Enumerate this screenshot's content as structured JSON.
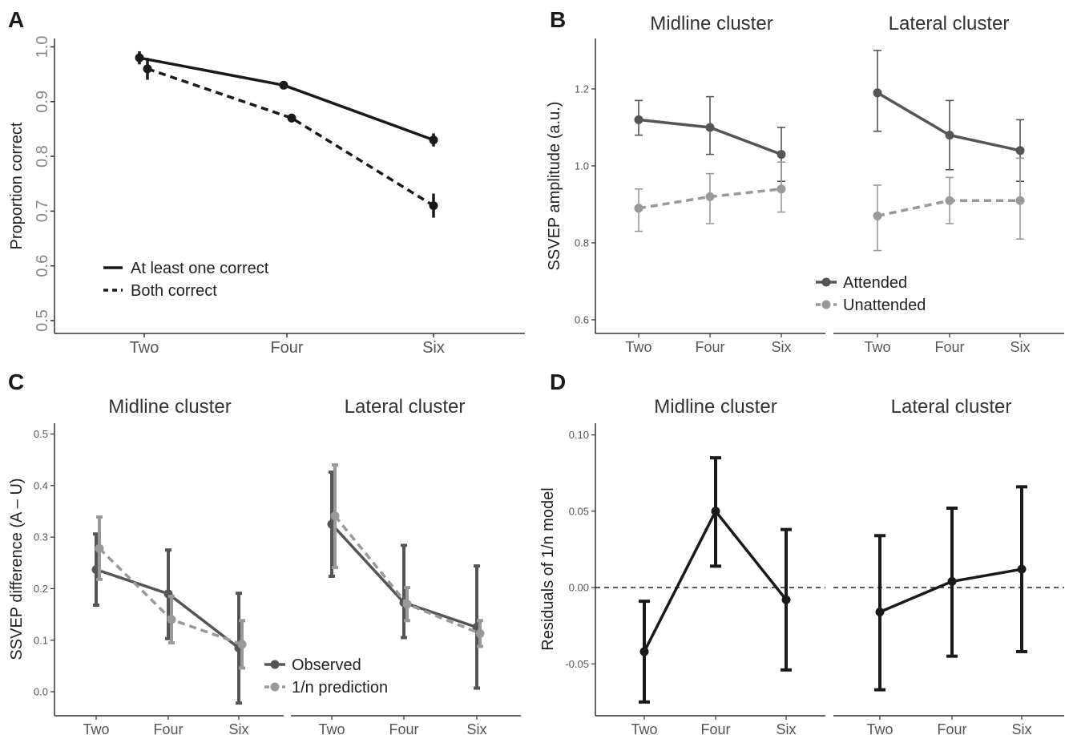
{
  "chart_data": [
    {
      "panel": "A",
      "type": "line",
      "title": "",
      "xlabel": "",
      "ylabel": "Proportion correct",
      "categories": [
        "Two",
        "Four",
        "Six"
      ],
      "ylim": [
        0.5,
        1.0
      ],
      "yticks": [
        "0.5",
        "0.6",
        "0.7",
        "0.8",
        "0.9",
        "1.0"
      ],
      "series": [
        {
          "name": "At least one correct",
          "style": "solid",
          "color": "#1a1a1a",
          "values": [
            0.98,
            0.93,
            0.83
          ],
          "err": [
            0.012,
            0.004,
            0.012
          ]
        },
        {
          "name": "Both correct",
          "style": "dashed",
          "color": "#1a1a1a",
          "values": [
            0.96,
            0.87,
            0.71
          ],
          "err": [
            0.02,
            0.008,
            0.022
          ]
        }
      ]
    },
    {
      "panel": "B",
      "type": "line",
      "ylabel": "SSVEP amplitude (a.u.)",
      "categories": [
        "Two",
        "Four",
        "Six"
      ],
      "ylim": [
        0.6,
        1.3
      ],
      "yticks": [
        "0.6",
        "0.8",
        "1.0",
        "1.2"
      ],
      "facets": [
        {
          "title": "Midline cluster",
          "series": [
            {
              "name": "Attended",
              "values": [
                1.12,
                1.1,
                1.03
              ],
              "lo": [
                1.08,
                1.03,
                0.96
              ],
              "hi": [
                1.17,
                1.18,
                1.1
              ]
            },
            {
              "name": "Unattended",
              "values": [
                0.89,
                0.92,
                0.94
              ],
              "lo": [
                0.83,
                0.85,
                0.88
              ],
              "hi": [
                0.94,
                0.98,
                1.01
              ]
            }
          ]
        },
        {
          "title": "Lateral cluster",
          "series": [
            {
              "name": "Attended",
              "values": [
                1.19,
                1.08,
                1.04
              ],
              "lo": [
                1.09,
                0.99,
                0.96
              ],
              "hi": [
                1.3,
                1.17,
                1.12
              ]
            },
            {
              "name": "Unattended",
              "values": [
                0.87,
                0.91,
                0.91
              ],
              "lo": [
                0.78,
                0.85,
                0.81
              ],
              "hi": [
                0.95,
                0.97,
                1.02
              ]
            }
          ]
        }
      ],
      "legend": [
        {
          "name": "Attended",
          "style": "solid",
          "color": "#555555"
        },
        {
          "name": "Unattended",
          "style": "dashed",
          "color": "#999999"
        }
      ]
    },
    {
      "panel": "C",
      "type": "line",
      "ylabel": "SSVEP difference (A – U)",
      "categories": [
        "Two",
        "Four",
        "Six"
      ],
      "ylim": [
        0.0,
        0.5
      ],
      "yticks": [
        "0.0",
        "0.1",
        "0.2",
        "0.3",
        "0.4",
        "0.5"
      ],
      "facets": [
        {
          "title": "Midline cluster",
          "series": [
            {
              "name": "Observed",
              "values": [
                0.237,
                0.19,
                0.085
              ],
              "lo": [
                0.168,
                0.103,
                -0.022
              ],
              "hi": [
                0.306,
                0.275,
                0.191
              ]
            },
            {
              "name": "1/n prediction",
              "values": [
                0.278,
                0.14,
                0.092
              ],
              "lo": [
                0.218,
                0.095,
                0.046
              ],
              "hi": [
                0.339,
                0.185,
                0.138
              ]
            }
          ]
        },
        {
          "title": "Lateral cluster",
          "series": [
            {
              "name": "Observed",
              "values": [
                0.325,
                0.173,
                0.125
              ],
              "lo": [
                0.224,
                0.105,
                0.007
              ],
              "hi": [
                0.426,
                0.284,
                0.244
              ]
            },
            {
              "name": "1/n prediction",
              "values": [
                0.341,
                0.17,
                0.113
              ],
              "lo": [
                0.241,
                0.138,
                0.088
              ],
              "hi": [
                0.44,
                0.202,
                0.138
              ]
            }
          ]
        }
      ],
      "legend": [
        {
          "name": "Observed",
          "style": "solid",
          "color": "#555555"
        },
        {
          "name": "1/n prediction",
          "style": "dashed",
          "color": "#999999"
        }
      ]
    },
    {
      "panel": "D",
      "type": "line",
      "ylabel": "Residuals of 1/n model",
      "categories": [
        "Two",
        "Four",
        "Six"
      ],
      "ylim": [
        -0.075,
        0.1
      ],
      "yticks": [
        "-0.05",
        "0.00",
        "0.05",
        "0.10"
      ],
      "reference_line": 0.0,
      "facets": [
        {
          "title": "Midline cluster",
          "series": [
            {
              "name": "Residual",
              "values": [
                -0.042,
                0.05,
                -0.008
              ],
              "lo": [
                -0.075,
                0.014,
                -0.054
              ],
              "hi": [
                -0.009,
                0.085,
                0.038
              ]
            }
          ]
        },
        {
          "title": "Lateral cluster",
          "series": [
            {
              "name": "Residual",
              "values": [
                -0.016,
                0.004,
                0.012
              ],
              "lo": [
                -0.067,
                -0.045,
                -0.042
              ],
              "hi": [
                0.034,
                0.052,
                0.066
              ]
            }
          ]
        }
      ]
    }
  ],
  "panel_labels": [
    "A",
    "B",
    "C",
    "D"
  ],
  "colors": {
    "dark": "#1a1a1a",
    "attended": "#555555",
    "unattended": "#999999"
  }
}
